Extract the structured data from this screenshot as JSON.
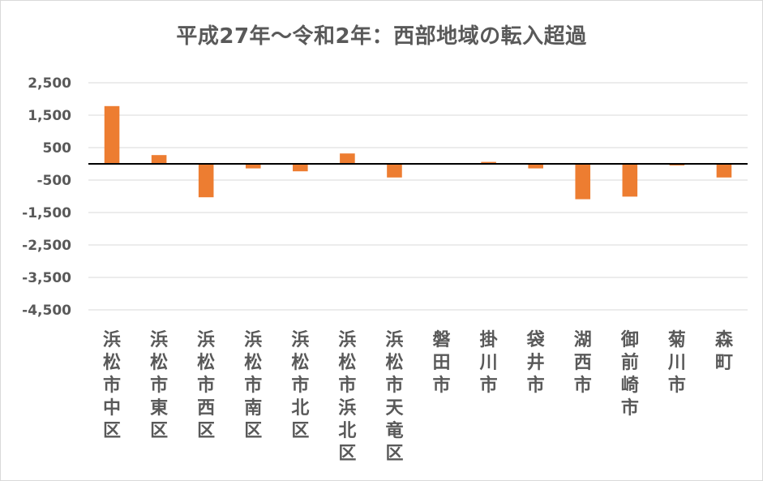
{
  "chart_data": {
    "type": "bar",
    "title": "平成27年～令和2年：西部地域の転入超過",
    "xlabel": "",
    "ylabel": "",
    "ylim": [
      -4500,
      2500
    ],
    "yticks": [
      2500,
      1500,
      500,
      -500,
      -1500,
      -2500,
      -3500,
      -4500
    ],
    "ytick_labels": [
      "2,500",
      "1,500",
      "500",
      "-500",
      "-1,500",
      "-2,500",
      "-3,500",
      "-4,500"
    ],
    "grid": true,
    "legend": "none",
    "bar_color": "#ed7d31",
    "categories": [
      "浜松市中区",
      "浜松市東区",
      "浜松市西区",
      "浜松市南区",
      "浜松市北区",
      "浜松市浜北区",
      "浜松市天竜区",
      "磐田市",
      "掛川市",
      "袋井市",
      "湖西市",
      "御前崎市",
      "菊川市",
      "森町"
    ],
    "values": [
      1780,
      270,
      -1030,
      -140,
      -230,
      320,
      -420,
      0,
      60,
      -140,
      -1090,
      -1010,
      -50,
      -420
    ]
  }
}
